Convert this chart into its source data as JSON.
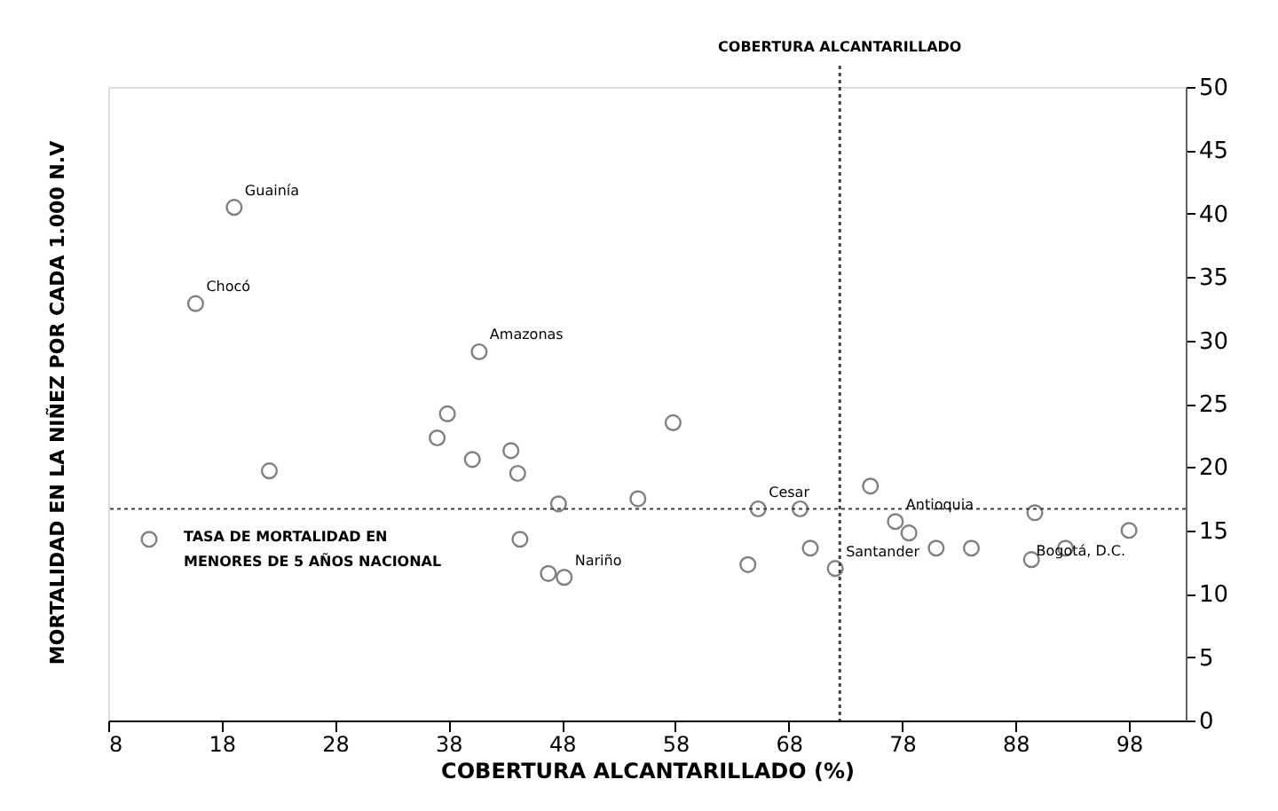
{
  "chart_data": {
    "type": "scatter",
    "xlabel": "COBERTURA ALCANTARILLADO (%)",
    "ylabel": "MORTALIDAD EN LA NIÑEZ POR CADA 1.000 N.V",
    "x": [
      11.6,
      19.1,
      15.7,
      22.2,
      40.7,
      37.9,
      37.0,
      40.1,
      43.5,
      44.1,
      47.7,
      44.3,
      46.8,
      48.2,
      54.7,
      57.8,
      65.3,
      69.0,
      69.9,
      64.4,
      72.1,
      75.2,
      77.4,
      78.6,
      81.0,
      84.1,
      89.7,
      89.4,
      92.4,
      98.0
    ],
    "values": [
      14.3,
      40.5,
      32.9,
      19.7,
      29.1,
      24.2,
      22.3,
      20.6,
      21.3,
      19.5,
      17.1,
      14.3,
      11.6,
      11.3,
      17.5,
      23.5,
      16.7,
      16.7,
      13.6,
      12.3,
      12.0,
      18.5,
      15.7,
      14.8,
      13.6,
      13.6,
      16.4,
      12.7,
      13.6,
      15.0
    ],
    "color": "#808080",
    "marker": "circle",
    "xlim": [
      8,
      103
    ],
    "xticks": [
      8,
      18,
      28,
      38,
      48,
      58,
      68,
      78,
      88,
      98
    ],
    "ylim": [
      0,
      50
    ],
    "yticks": [
      0,
      5,
      10,
      15,
      20,
      25,
      30,
      35,
      40,
      45,
      50
    ],
    "grid": false,
    "ref_lines": [
      {
        "axis": "x",
        "value": 72.5,
        "label": "COBERTURA ALCANTARILLADO",
        "line_style": "dotted",
        "color": "#404040"
      },
      {
        "axis": "y",
        "value": 16.7,
        "label": "TASA DE MORTALIDAD EN\nMENORES DE 5 AÑOS NACIONAL",
        "line_style": "dotted",
        "color": "#404040"
      }
    ],
    "annotations": [
      {
        "text": "Guainía",
        "x": 19.1,
        "y": 40.5
      },
      {
        "text": "Chocó",
        "x": 15.7,
        "y": 32.9
      },
      {
        "text": "Amazonas",
        "x": 40.7,
        "y": 29.1
      },
      {
        "text": "Nariño",
        "x": 48.2,
        "y": 11.3
      },
      {
        "text": "Cesar",
        "x": 65.3,
        "y": 16.7
      },
      {
        "text": "Santander",
        "x": 72.1,
        "y": 12.0
      },
      {
        "text": "Antioquia",
        "x": 77.4,
        "y": 15.7
      },
      {
        "text": "Bogotá, D.C.",
        "x": 98.0,
        "y": 15.0
      }
    ]
  }
}
